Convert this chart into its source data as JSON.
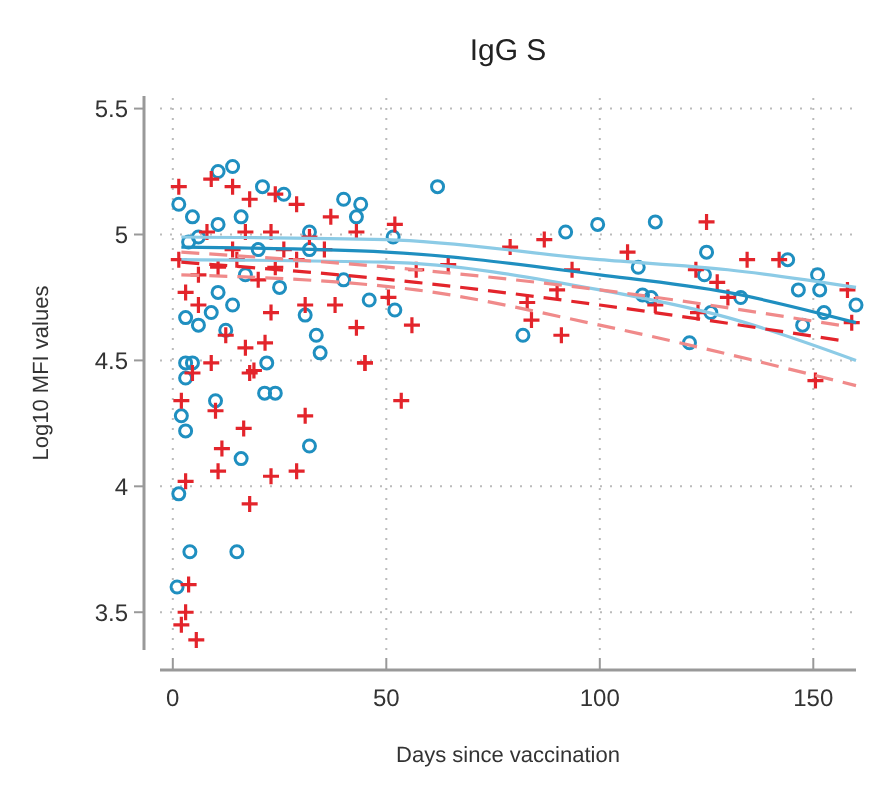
{
  "chart_data": {
    "type": "scatter",
    "title": "IgG S",
    "xlabel": "Days since vaccination",
    "ylabel": "Log10 MFI values",
    "xlim": [
      -3,
      160
    ],
    "xticks": [
      0,
      50,
      100,
      150
    ],
    "ylim": [
      3.35,
      5.55
    ],
    "yticks": [
      3.5,
      4,
      4.5,
      5,
      5.5
    ],
    "grid": true,
    "series": [
      {
        "color": "#1f8fc0",
        "marker": "circle",
        "x": [
          62,
          92,
          99.5,
          113,
          125,
          109,
          124.5,
          110,
          112,
          82,
          121,
          126,
          133,
          144,
          151,
          146.5,
          151.5,
          147.5,
          152.5,
          160,
          51.6,
          52,
          46,
          44,
          1.4,
          4,
          15,
          1,
          3,
          2,
          10,
          16,
          21.5,
          4.6,
          3,
          32,
          14,
          10.6,
          1.4,
          3.7,
          6,
          3,
          6,
          9,
          10.6,
          14,
          17,
          12.4,
          22,
          33.6,
          34.5,
          31,
          25,
          26,
          21,
          40,
          43,
          32,
          40,
          3,
          24,
          10.6,
          16,
          4.6,
          20,
          32
        ],
        "values": [
          5.19,
          5.01,
          5.04,
          5.05,
          4.93,
          4.87,
          4.84,
          4.76,
          4.75,
          4.6,
          4.57,
          4.69,
          4.75,
          4.9,
          4.84,
          4.78,
          4.78,
          4.64,
          4.69,
          4.72,
          4.99,
          4.7,
          4.74,
          5.12,
          3.97,
          3.74,
          3.74,
          3.6,
          4.22,
          4.28,
          4.34,
          4.11,
          4.37,
          4.49,
          4.43,
          4.16,
          5.27,
          5.25,
          5.12,
          4.97,
          4.99,
          4.67,
          4.64,
          4.69,
          4.77,
          4.72,
          4.84,
          4.62,
          4.49,
          4.6,
          4.53,
          4.68,
          4.79,
          5.16,
          5.19,
          5.14,
          5.07,
          4.94,
          4.82,
          4.49,
          4.37,
          5.04,
          5.07,
          5.07,
          4.94,
          5.01
        ]
      },
      {
        "color": "#e3242b",
        "marker": "cross",
        "x": [
          125,
          87,
          79,
          106.5,
          134.5,
          142,
          93.5,
          122.5,
          127.5,
          90,
          130,
          83,
          113,
          123,
          84,
          91,
          158,
          159,
          150.5,
          64.5,
          57,
          56,
          43,
          45,
          53.5,
          52,
          50.5,
          3,
          2,
          5.5,
          3.7,
          3,
          18,
          11.5,
          10.6,
          23,
          29,
          16.6,
          2,
          10,
          19,
          31,
          1.4,
          9,
          14,
          18,
          24,
          29,
          37,
          43,
          1.4,
          6,
          10.6,
          15,
          20,
          24,
          29,
          35.5,
          38,
          31,
          23,
          12.4,
          17,
          21.6,
          4.6,
          9,
          45,
          18,
          32,
          8,
          17,
          23,
          26,
          14,
          3,
          6
        ],
        "values": [
          5.05,
          4.98,
          4.95,
          4.93,
          4.9,
          4.9,
          4.86,
          4.86,
          4.81,
          4.78,
          4.75,
          4.73,
          4.72,
          4.69,
          4.66,
          4.6,
          4.78,
          4.65,
          4.42,
          4.88,
          4.86,
          4.64,
          4.63,
          4.49,
          4.34,
          5.04,
          4.75,
          3.5,
          3.45,
          3.39,
          3.61,
          4.02,
          3.93,
          4.15,
          4.06,
          4.04,
          4.06,
          4.23,
          4.34,
          4.3,
          4.46,
          4.28,
          5.19,
          5.22,
          5.19,
          5.14,
          5.16,
          5.12,
          5.07,
          5.01,
          4.9,
          4.84,
          4.87,
          4.9,
          4.82,
          4.87,
          4.9,
          4.94,
          4.72,
          4.72,
          4.69,
          4.6,
          4.55,
          4.57,
          4.45,
          4.49,
          4.49,
          4.45,
          4.99,
          5.01,
          5.01,
          5.01,
          4.94,
          4.94,
          4.77,
          4.72
        ]
      },
      {
        "type": "line",
        "color": "#8ccbe6",
        "line_style": "solid",
        "x": [
          2,
          50,
          100,
          130,
          160
        ],
        "values": [
          4.99,
          4.98,
          4.9,
          4.86,
          4.79
        ]
      },
      {
        "type": "line",
        "color": "#8ccbe6",
        "line_style": "solid",
        "x": [
          2,
          50,
          100,
          130,
          160
        ],
        "values": [
          4.9,
          4.89,
          4.78,
          4.67,
          4.5
        ]
      },
      {
        "type": "line",
        "color": "#1f8fc0",
        "line_style": "solid",
        "x": [
          2,
          50,
          100,
          130,
          160
        ],
        "values": [
          4.95,
          4.93,
          4.84,
          4.77,
          4.65
        ]
      },
      {
        "type": "line",
        "color": "#f08a8a",
        "line_style": "dashed",
        "x": [
          2,
          57,
          100,
          156
        ],
        "values": [
          4.93,
          4.86,
          4.78,
          4.64
        ]
      },
      {
        "type": "line",
        "color": "#f08a8a",
        "line_style": "dashed",
        "x": [
          2,
          57,
          100,
          160
        ],
        "values": [
          4.84,
          4.78,
          4.64,
          4.4
        ]
      },
      {
        "type": "line",
        "color": "#e3242b",
        "line_style": "dashed",
        "x": [
          2,
          57,
          100,
          156
        ],
        "values": [
          4.89,
          4.81,
          4.72,
          4.58
        ]
      }
    ]
  }
}
